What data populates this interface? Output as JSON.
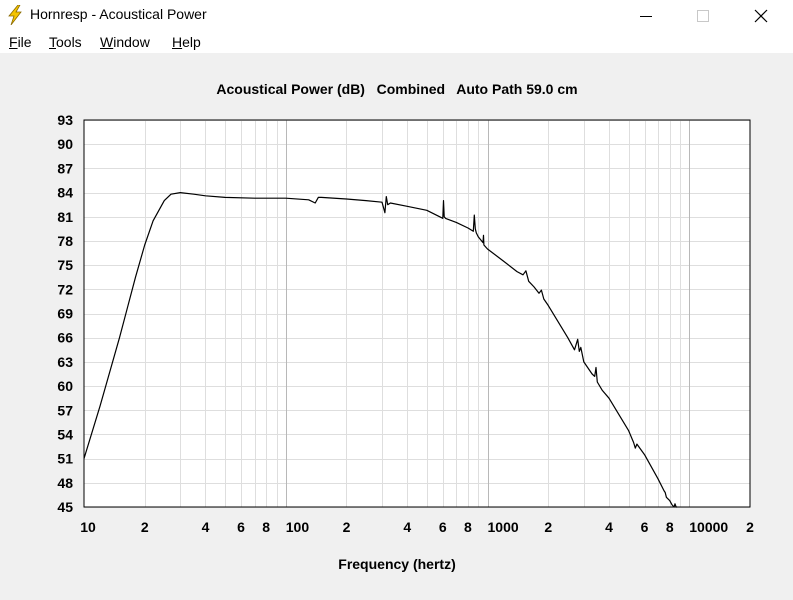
{
  "window": {
    "title": "Hornresp - Acoustical Power"
  },
  "menu": {
    "items": [
      {
        "label": "File",
        "mnemonic": "F",
        "rest": "ile"
      },
      {
        "label": "Tools",
        "mnemonic": "T",
        "rest": "ools"
      },
      {
        "label": "Window",
        "mnemonic": "W",
        "rest": "indow"
      },
      {
        "label": "Help",
        "mnemonic": "H",
        "rest": "elp"
      }
    ]
  },
  "colors": {
    "plot_bg": "#ffffff",
    "grid_major": "#b8b8b8",
    "grid_minor": "#dedede",
    "curve": "#000000",
    "icon_yellow": "#f5c400"
  },
  "chart_data": {
    "type": "line",
    "title": "Acoustical Power (dB)   Combined   Auto Path 59.0 cm",
    "xlabel": "Frequency (hertz)",
    "ylabel": "",
    "xscale": "log",
    "xlim": [
      10,
      20000
    ],
    "ylim": [
      45,
      93
    ],
    "yticks": [
      93,
      90,
      87,
      84,
      81,
      78,
      75,
      72,
      69,
      66,
      63,
      60,
      57,
      54,
      51,
      48,
      45
    ],
    "xticks": [
      {
        "value": 10,
        "label": "10"
      },
      {
        "value": 20,
        "label": "2"
      },
      {
        "value": 40,
        "label": "4"
      },
      {
        "value": 60,
        "label": "6"
      },
      {
        "value": 80,
        "label": "8"
      },
      {
        "value": 100,
        "label": "100"
      },
      {
        "value": 200,
        "label": "2"
      },
      {
        "value": 400,
        "label": "4"
      },
      {
        "value": 600,
        "label": "6"
      },
      {
        "value": 800,
        "label": "8"
      },
      {
        "value": 1000,
        "label": "1000"
      },
      {
        "value": 2000,
        "label": "2"
      },
      {
        "value": 4000,
        "label": "4"
      },
      {
        "value": 6000,
        "label": "6"
      },
      {
        "value": 8000,
        "label": "8"
      },
      {
        "value": 10000,
        "label": "10000"
      },
      {
        "value": 20000,
        "label": "2"
      }
    ],
    "grid": true,
    "series": [
      {
        "x": [
          10,
          12,
          15,
          18,
          20,
          22,
          25,
          27,
          30,
          35,
          40,
          50,
          70,
          100,
          130,
          140,
          145,
          150,
          200,
          250,
          300,
          310,
          315,
          320,
          330,
          400,
          500,
          580,
          600,
          605,
          610,
          620,
          700,
          800,
          850,
          860,
          870,
          880,
          900,
          950,
          955,
          960,
          1000,
          1200,
          1400,
          1500,
          1550,
          1600,
          1700,
          1800,
          1850,
          1900,
          2000,
          2500,
          2700,
          2800,
          2850,
          2900,
          3000,
          3300,
          3400,
          3450,
          3500,
          3700,
          4000,
          5000,
          5300,
          5400,
          5500,
          6000,
          7000,
          7500,
          7600,
          7700,
          8000,
          8200,
          8400,
          8500,
          8600,
          8700
        ],
        "values": [
          51,
          57.5,
          66,
          73.5,
          77.5,
          80.5,
          83,
          83.8,
          84,
          83.8,
          83.6,
          83.4,
          83.3,
          83.3,
          83.1,
          82.7,
          83.4,
          83.4,
          83.2,
          83.0,
          82.8,
          81.5,
          83.5,
          82.5,
          82.7,
          82.3,
          81.8,
          81.0,
          80.8,
          83.0,
          81.0,
          80.8,
          80.3,
          79.6,
          79.2,
          81.2,
          79.5,
          79.0,
          78.5,
          77.8,
          78.7,
          77.5,
          77.0,
          75.5,
          74.2,
          73.8,
          74.3,
          73.0,
          72.3,
          71.5,
          71.9,
          70.8,
          70.0,
          66.0,
          64.5,
          65.8,
          64.3,
          64.8,
          63.0,
          61.5,
          61.2,
          62.3,
          60.5,
          59.5,
          58.5,
          54.5,
          53.0,
          52.3,
          52.8,
          51.5,
          48.5,
          47.0,
          46.8,
          46.2,
          45.8,
          45.3,
          45.0,
          45.4,
          45.0,
          45.0
        ]
      }
    ]
  }
}
